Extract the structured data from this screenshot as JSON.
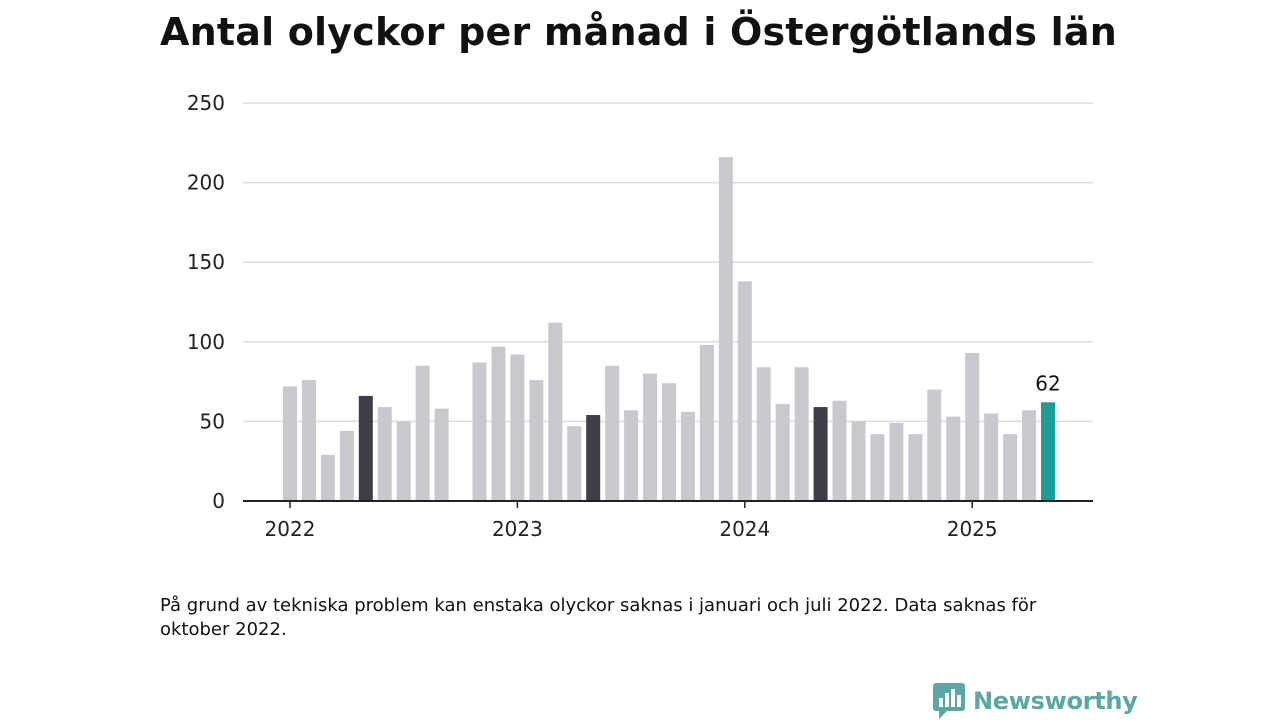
{
  "title": "Antal olyckor per månad i Östergötlands län",
  "note": "På grund av tekniska problem kan enstaka olyckor saknas i januari och juli 2022. Data saknas för oktober 2022.",
  "brand": {
    "name": "Newsworthy",
    "color": "#5aa7a4"
  },
  "colors": {
    "bar": "#c9c8cf",
    "highlight": "#3e3d4a",
    "latest": "#1a9e96",
    "grid": "#dcdcdc",
    "axis": "#222222"
  },
  "chart_data": {
    "type": "bar",
    "ylim": [
      0,
      250
    ],
    "yticks": [
      0,
      50,
      100,
      150,
      200,
      250
    ],
    "xticks": [
      {
        "label": "2022",
        "month": "2022-01"
      },
      {
        "label": "2023",
        "month": "2023-01"
      },
      {
        "label": "2024",
        "month": "2024-01"
      },
      {
        "label": "2025",
        "month": "2025-01"
      }
    ],
    "grid": true,
    "categories": [
      "2022-01",
      "2022-02",
      "2022-03",
      "2022-04",
      "2022-05",
      "2022-06",
      "2022-07",
      "2022-08",
      "2022-09",
      "2022-10",
      "2022-11",
      "2022-12",
      "2023-01",
      "2023-02",
      "2023-03",
      "2023-04",
      "2023-05",
      "2023-06",
      "2023-07",
      "2023-08",
      "2023-09",
      "2023-10",
      "2023-11",
      "2023-12",
      "2024-01",
      "2024-02",
      "2024-03",
      "2024-04",
      "2024-05",
      "2024-06",
      "2024-07",
      "2024-08",
      "2024-09",
      "2024-10",
      "2024-11",
      "2024-12",
      "2025-01",
      "2025-02",
      "2025-03",
      "2025-04",
      "2025-05"
    ],
    "values": [
      72,
      76,
      29,
      44,
      66,
      59,
      50,
      85,
      58,
      null,
      87,
      97,
      92,
      76,
      112,
      47,
      54,
      85,
      57,
      80,
      74,
      56,
      98,
      216,
      138,
      84,
      61,
      84,
      59,
      63,
      50,
      42,
      49,
      42,
      70,
      53,
      93,
      55,
      42,
      57,
      62
    ],
    "highlighted": [
      "2022-05",
      "2023-05",
      "2024-05"
    ],
    "latest": "2025-05",
    "latest_label": "62"
  }
}
